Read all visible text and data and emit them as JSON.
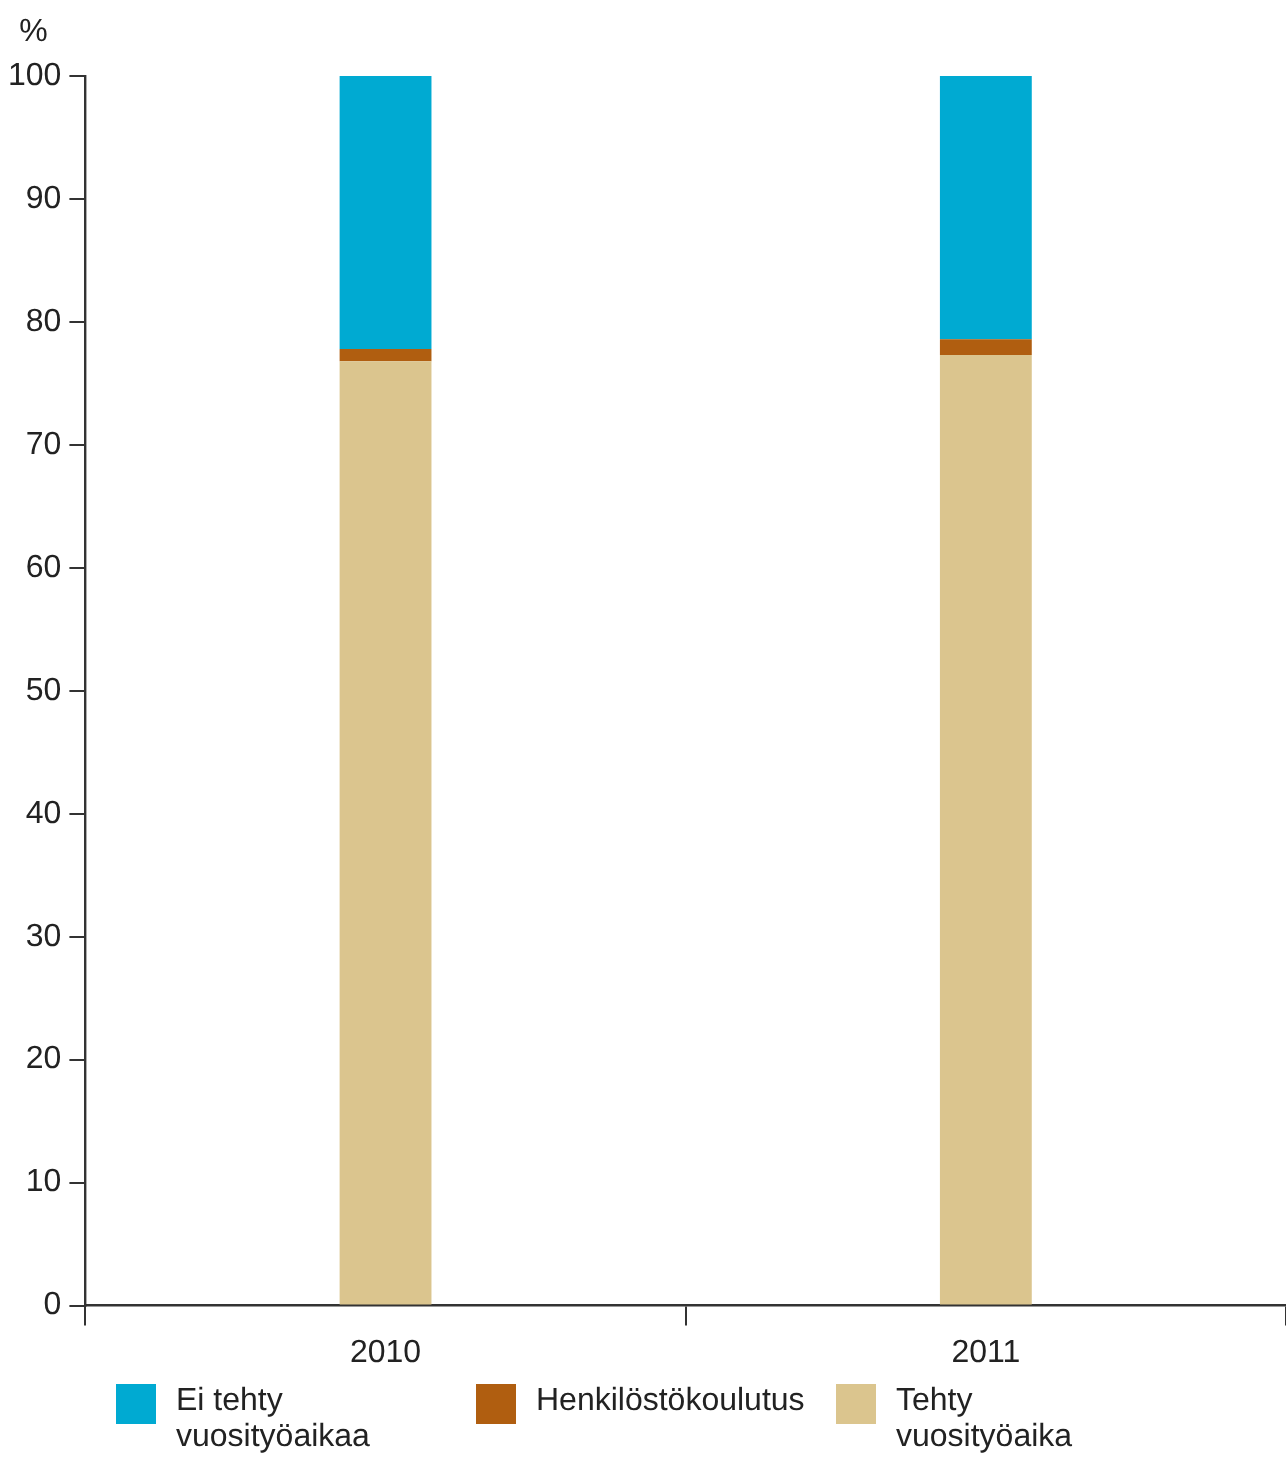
{
  "chart_data": {
    "type": "bar",
    "stacked": true,
    "ylabel": "%",
    "categories": [
      "2010",
      "2011"
    ],
    "series": [
      {
        "name": "Tehty vuosityöaika",
        "color": "#dbc58e",
        "values": [
          76.8,
          77.3
        ]
      },
      {
        "name": "Henkilöstökoulutus",
        "color": "#b05e10",
        "values": [
          1.0,
          1.3
        ]
      },
      {
        "name": "Ei tehty vuosityöaikaa",
        "color": "#00aad2",
        "values": [
          22.2,
          21.4
        ]
      }
    ],
    "ylim": [
      0,
      100
    ],
    "yticks": [
      0,
      10,
      20,
      30,
      40,
      50,
      60,
      70,
      80,
      90,
      100
    ],
    "grid": false,
    "legend": "bottom"
  }
}
